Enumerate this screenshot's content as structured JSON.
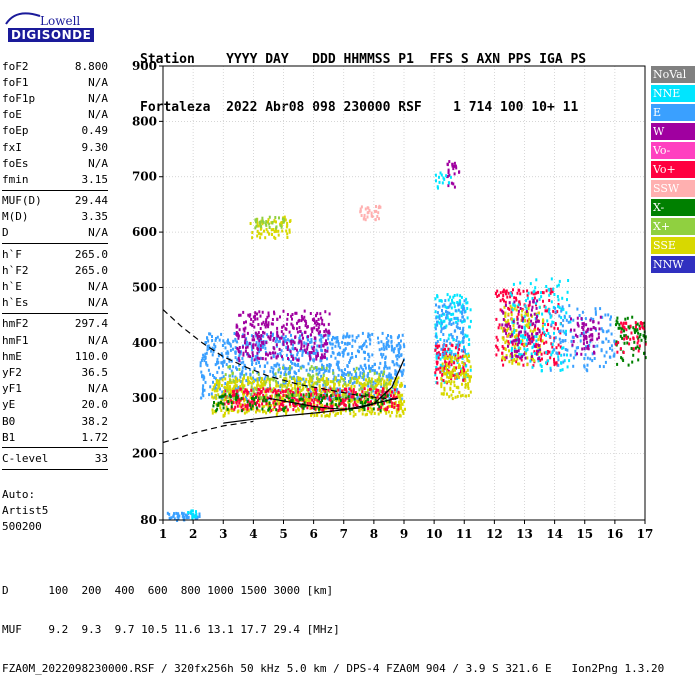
{
  "logo": {
    "line1": "Lowell",
    "line2": "DIGISONDE"
  },
  "header": {
    "line1": "Station    YYYY DAY   DDD HHMMSS P1  FFS S AXN PPS IGA PS",
    "line2": "Fortaleza  2022 Abr08 098 230000 RSF    1 714 100 10+ 11"
  },
  "params_groups": [
    [
      {
        "name": "foF2",
        "value": "8.800"
      },
      {
        "name": "foF1",
        "value": "N/A"
      },
      {
        "name": "foF1p",
        "value": "N/A"
      },
      {
        "name": "foE",
        "value": "N/A"
      },
      {
        "name": "foEp",
        "value": "0.49"
      },
      {
        "name": "fxI",
        "value": "9.30"
      },
      {
        "name": "foEs",
        "value": "N/A"
      },
      {
        "name": "fmin",
        "value": "3.15"
      }
    ],
    [
      {
        "name": "MUF(D)",
        "value": "29.44"
      },
      {
        "name": "M(D)",
        "value": "3.35"
      },
      {
        "name": "D",
        "value": "N/A"
      }
    ],
    [
      {
        "name": "h`F",
        "value": "265.0"
      },
      {
        "name": "h`F2",
        "value": "265.0"
      },
      {
        "name": "h`E",
        "value": "N/A"
      },
      {
        "name": "h`Es",
        "value": "N/A"
      }
    ],
    [
      {
        "name": "hmF2",
        "value": "297.4"
      },
      {
        "name": "hmF1",
        "value": "N/A"
      },
      {
        "name": "hmE",
        "value": "110.0"
      },
      {
        "name": "yF2",
        "value": "36.5"
      },
      {
        "name": "yF1",
        "value": "N/A"
      },
      {
        "name": "yE",
        "value": "20.0"
      },
      {
        "name": "B0",
        "value": "38.2"
      },
      {
        "name": "B1",
        "value": "1.72"
      }
    ],
    [
      {
        "name": "C-level",
        "value": "33"
      }
    ]
  ],
  "auto": {
    "line1": "Auto:",
    "line2": "Artist5",
    "line3": "500200"
  },
  "legend": [
    {
      "label": "NoVal",
      "color": "#808080"
    },
    {
      "label": "NNE",
      "color": "#00e5ff"
    },
    {
      "label": "E",
      "color": "#3aa0ff"
    },
    {
      "label": "W",
      "color": "#a000a0"
    },
    {
      "label": "Vo-",
      "color": "#ff40c0"
    },
    {
      "label": "Vo+",
      "color": "#ff0040"
    },
    {
      "label": "SSW",
      "color": "#ffb0b0"
    },
    {
      "label": "X-",
      "color": "#008000"
    },
    {
      "label": "X+",
      "color": "#90d040"
    },
    {
      "label": "SSE",
      "color": "#d8d800"
    },
    {
      "label": "NNW",
      "color": "#3030c0"
    }
  ],
  "footer": {
    "line1": "D      100  200  400  600  800 1000 1500 3000 [km]",
    "line2": "MUF    9.2  9.3  9.7 10.5 11.6 13.1 17.7 29.4 [MHz]",
    "line3": "FZA0M_2022098230000.RSF / 320fx256h 50 kHz 5.0 km / DPS-4 FZA0M 904 / 3.9 S 321.6 E   Ion2Png 1.3.20"
  },
  "chart_data": {
    "type": "scatter",
    "xlim": [
      1,
      17
    ],
    "ylim": [
      80,
      900
    ],
    "x_ticks": [
      1,
      2,
      3,
      4,
      5,
      6,
      7,
      8,
      9,
      10,
      11,
      12,
      13,
      14,
      15,
      16,
      17
    ],
    "y_ticks": [
      80,
      200,
      300,
      400,
      500,
      600,
      700,
      800,
      900
    ],
    "grid": true,
    "clusters": [
      {
        "color": "#3aa0ff",
        "x": [
          2.2,
          9.0
        ],
        "y": [
          300,
          420
        ],
        "n": 900
      },
      {
        "color": "#d8d800",
        "x": [
          2.6,
          9.0
        ],
        "y": [
          270,
          340
        ],
        "n": 700
      },
      {
        "color": "#ff0040",
        "x": [
          3.0,
          8.8
        ],
        "y": [
          280,
          320
        ],
        "n": 350
      },
      {
        "color": "#a000a0",
        "x": [
          3.4,
          6.5
        ],
        "y": [
          370,
          460
        ],
        "n": 300
      },
      {
        "color": "#008000",
        "x": [
          2.6,
          8.5
        ],
        "y": [
          280,
          310
        ],
        "n": 150
      },
      {
        "color": "#90d040",
        "x": [
          3.0,
          8.5
        ],
        "y": [
          300,
          360
        ],
        "n": 120
      },
      {
        "color": "#00e5ff",
        "x": [
          10.0,
          11.2
        ],
        "y": [
          330,
          490
        ],
        "n": 160
      },
      {
        "color": "#ff0040",
        "x": [
          10.0,
          11.0
        ],
        "y": [
          330,
          400
        ],
        "n": 90
      },
      {
        "color": "#d8d800",
        "x": [
          10.2,
          11.2
        ],
        "y": [
          300,
          380
        ],
        "n": 120
      },
      {
        "color": "#3aa0ff",
        "x": [
          10.0,
          11.0
        ],
        "y": [
          380,
          480
        ],
        "n": 90
      },
      {
        "color": "#ff0040",
        "x": [
          12.0,
          14.2
        ],
        "y": [
          360,
          500
        ],
        "n": 200
      },
      {
        "color": "#d8d800",
        "x": [
          12.2,
          13.6
        ],
        "y": [
          360,
          470
        ],
        "n": 120
      },
      {
        "color": "#00e5ff",
        "x": [
          12.5,
          14.5
        ],
        "y": [
          350,
          520
        ],
        "n": 150
      },
      {
        "color": "#a000a0",
        "x": [
          12.2,
          13.5
        ],
        "y": [
          370,
          480
        ],
        "n": 90
      },
      {
        "color": "#3aa0ff",
        "x": [
          13.8,
          16.0
        ],
        "y": [
          350,
          470
        ],
        "n": 120
      },
      {
        "color": "#a000a0",
        "x": [
          14.5,
          15.5
        ],
        "y": [
          380,
          450
        ],
        "n": 60
      },
      {
        "color": "#008000",
        "x": [
          16.0,
          17.0
        ],
        "y": [
          360,
          450
        ],
        "n": 70
      },
      {
        "color": "#ff0040",
        "x": [
          16.0,
          17.0
        ],
        "y": [
          380,
          440
        ],
        "n": 40
      },
      {
        "color": "#d8d800",
        "x": [
          3.8,
          5.2
        ],
        "y": [
          590,
          630
        ],
        "n": 60
      },
      {
        "color": "#90d040",
        "x": [
          4.0,
          5.0
        ],
        "y": [
          610,
          630
        ],
        "n": 30
      },
      {
        "color": "#ffb0b0",
        "x": [
          7.5,
          8.2
        ],
        "y": [
          625,
          650
        ],
        "n": 30
      },
      {
        "color": "#a000a0",
        "x": [
          10.4,
          10.8
        ],
        "y": [
          680,
          730
        ],
        "n": 25
      },
      {
        "color": "#00e5ff",
        "x": [
          10.0,
          10.6
        ],
        "y": [
          680,
          710
        ],
        "n": 15
      },
      {
        "color": "#3aa0ff",
        "x": [
          1.1,
          2.2
        ],
        "y": [
          80,
          95
        ],
        "n": 40
      },
      {
        "color": "#00e5ff",
        "x": [
          1.8,
          2.1
        ],
        "y": [
          85,
          100
        ],
        "n": 15
      }
    ],
    "curves": [
      {
        "style": "dashed",
        "points": [
          [
            1.0,
            460
          ],
          [
            1.6,
            430
          ],
          [
            2.3,
            400
          ],
          [
            3.0,
            375
          ],
          [
            3.8,
            355
          ],
          [
            4.5,
            340
          ],
          [
            5.5,
            325
          ],
          [
            6.5,
            315
          ],
          [
            7.5,
            305
          ],
          [
            8.3,
            300
          ],
          [
            8.8,
            298
          ]
        ]
      },
      {
        "style": "solid",
        "points": [
          [
            4.5,
            300
          ],
          [
            5.0,
            295
          ],
          [
            5.5,
            290
          ],
          [
            6.0,
            285
          ],
          [
            6.5,
            282
          ],
          [
            7.0,
            280
          ],
          [
            7.5,
            282
          ],
          [
            8.0,
            290
          ],
          [
            8.6,
            320
          ],
          [
            9.0,
            370
          ]
        ]
      },
      {
        "style": "solid",
        "points": [
          [
            3.0,
            255
          ],
          [
            4.0,
            262
          ],
          [
            5.0,
            268
          ],
          [
            6.0,
            273
          ],
          [
            7.0,
            279
          ],
          [
            8.0,
            290
          ],
          [
            8.6,
            298
          ],
          [
            8.8,
            300
          ]
        ]
      },
      {
        "style": "dashed",
        "points": [
          [
            1.0,
            220
          ],
          [
            1.5,
            228
          ],
          [
            2.0,
            237
          ],
          [
            3.0,
            250
          ],
          [
            4.0,
            258
          ]
        ]
      }
    ]
  }
}
